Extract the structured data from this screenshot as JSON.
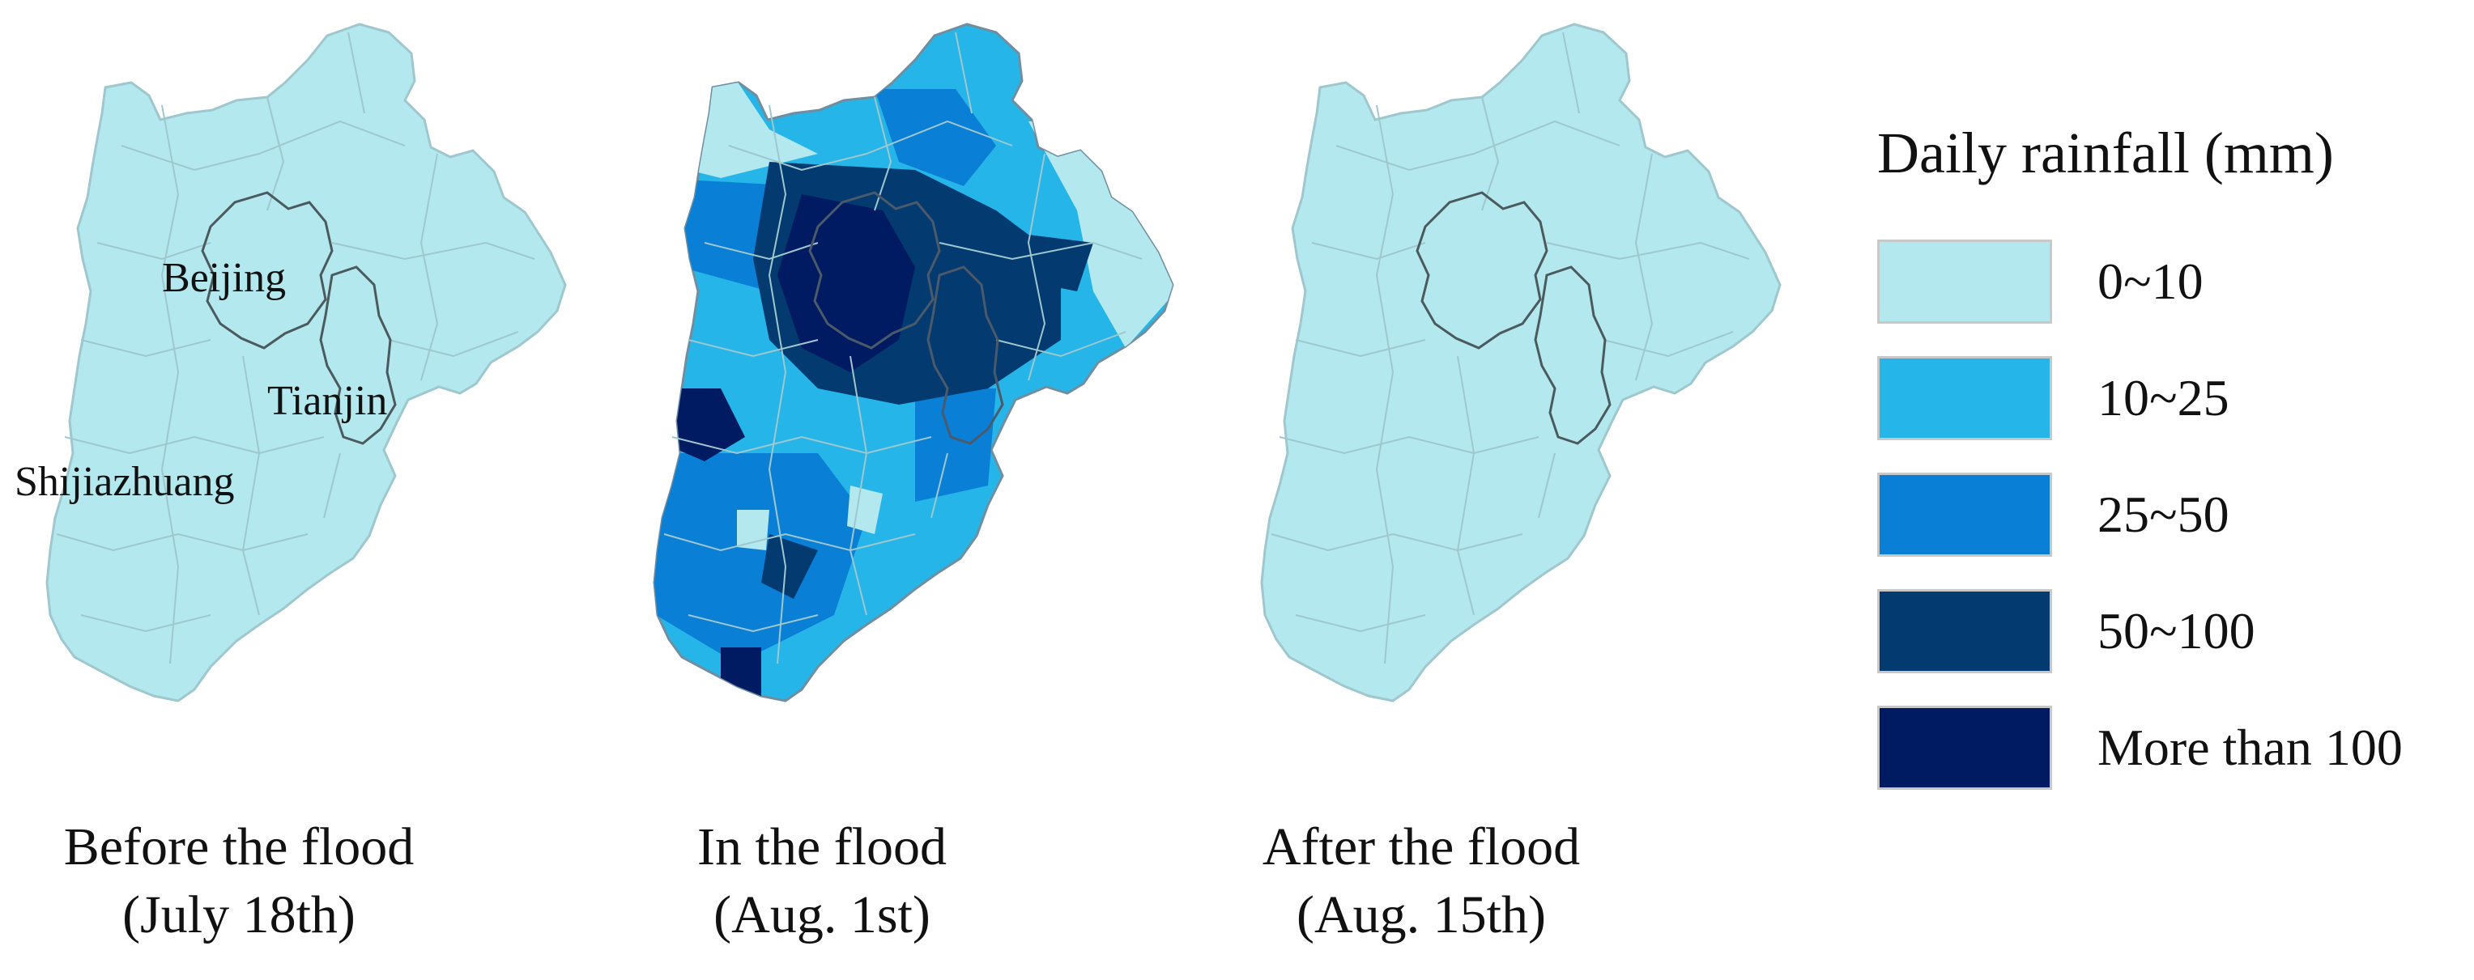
{
  "maps": [
    {
      "id": "before",
      "caption_line1": "Before the flood",
      "caption_line2": "(July 18th)",
      "city_labels": [
        "Beijing",
        "Tianjin",
        "Shijiazhuang"
      ]
    },
    {
      "id": "during",
      "caption_line1": "In the flood",
      "caption_line2": "(Aug. 1st)",
      "city_labels": []
    },
    {
      "id": "after",
      "caption_line1": "After the flood",
      "caption_line2": "(Aug. 15th)",
      "city_labels": []
    }
  ],
  "legend": {
    "title": "Daily rainfall (mm)",
    "items": [
      {
        "label": "0~10",
        "color": "#b3e8ee"
      },
      {
        "label": "10~25",
        "color": "#25b5e8"
      },
      {
        "label": "25~50",
        "color": "#0a7fd6"
      },
      {
        "label": "50~100",
        "color": "#033a70"
      },
      {
        "label": "More than 100",
        "color": "#001b62"
      }
    ]
  }
}
